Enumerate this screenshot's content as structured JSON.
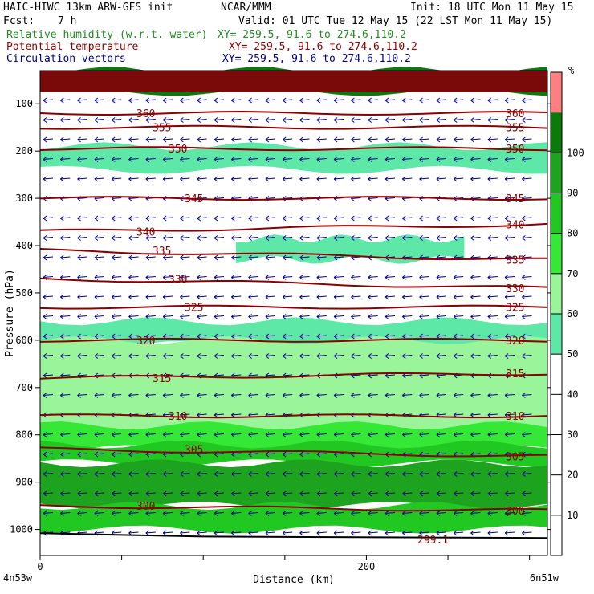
{
  "header": {
    "model": "HAIC-HIWC 13km ARW-GFS init",
    "org": "NCAR/MMM",
    "init": "Init: 18 UTC Mon 11 May 15",
    "fcst_label": "Fcst:",
    "fcst_value": "7 h",
    "valid": "Valid: 01 UTC Tue 12 May 15 (22 LST Mon 11 May 15)",
    "rh_title": "Relative humidity (w.r.t. water)",
    "rh_xy": "XY= 259.5, 91.6 to 274.6,110.2",
    "theta_title": "Potential temperature",
    "theta_xy": "XY= 259.5, 91.6 to 274.6,110.2",
    "vec_title": "Circulation vectors",
    "vec_xy": "XY= 259.5, 91.6 to 274.6,110.2"
  },
  "colors": {
    "rh": "#228b22",
    "theta": "#8b0000",
    "vectors": "#00008b",
    "bands": [
      "#ffffff",
      "#ffffff",
      "#ffffff",
      "#ffffff",
      "#ffffff",
      "#5ee8a8",
      "#9af59a",
      "#36e836",
      "#22c822",
      "#1ea31e",
      "#0a7a0a",
      "#ff8080"
    ]
  },
  "chart_data": {
    "type": "heatmap",
    "xlabel": "Distance (km)",
    "ylabel": "Pressure (hPa)",
    "xlim": [
      0,
      311
    ],
    "ylim": [
      1055,
      30
    ],
    "x_ticks": [
      0,
      200
    ],
    "y_ticks": [
      100,
      200,
      300,
      400,
      500,
      600,
      700,
      800,
      900,
      1000
    ],
    "x_endpoint_labels": [
      "4n53w",
      "6n51w"
    ],
    "colorbar": {
      "unit": "%",
      "levels": [
        10,
        20,
        30,
        40,
        50,
        60,
        70,
        80,
        90,
        100
      ]
    },
    "rh_regions": [
      {
        "level": 50,
        "x": [
          0,
          311
        ],
        "p_top": 560,
        "p_bottom": 610
      },
      {
        "level": 50,
        "x": [
          120,
          260
        ],
        "p_top": 385,
        "p_bottom": 430
      },
      {
        "level": 50,
        "x": [
          0,
          311
        ],
        "p_top": 190,
        "p_bottom": 240
      },
      {
        "level": 60,
        "x": [
          0,
          311
        ],
        "p_top": 600,
        "p_bottom": 790
      },
      {
        "level": 70,
        "x": [
          0,
          311
        ],
        "p_top": 780,
        "p_bottom": 830
      },
      {
        "level": 80,
        "x": [
          0,
          311
        ],
        "p_top": 820,
        "p_bottom": 860
      },
      {
        "level": 90,
        "x": [
          0,
          311
        ],
        "p_top": 860,
        "p_bottom": 950
      },
      {
        "level": 80,
        "x": [
          0,
          311
        ],
        "p_top": 950,
        "p_bottom": 1000
      },
      {
        "level": 100,
        "x": [
          0,
          311
        ],
        "p_top": 30,
        "p_bottom": 75
      }
    ],
    "theta_contours": [
      {
        "label": "360",
        "p_left": 120,
        "p_right": 120
      },
      {
        "label": "355",
        "p_left": 150,
        "p_right": 150
      },
      {
        "label": "350",
        "p_left": 195,
        "p_right": 195
      },
      {
        "label": "345",
        "p_left": 300,
        "p_right": 300
      },
      {
        "label": "340",
        "p_left": 370,
        "p_right": 355
      },
      {
        "label": "335",
        "p_left": 410,
        "p_right": 430
      },
      {
        "label": "330",
        "p_left": 470,
        "p_right": 490
      },
      {
        "label": "325",
        "p_left": 530,
        "p_right": 530
      },
      {
        "label": "320",
        "p_left": 600,
        "p_right": 600
      },
      {
        "label": "315",
        "p_left": 680,
        "p_right": 670
      },
      {
        "label": "310",
        "p_left": 760,
        "p_right": 760
      },
      {
        "label": "305",
        "p_left": 830,
        "p_right": 845
      },
      {
        "label": "300",
        "p_left": 950,
        "p_right": 960
      }
    ],
    "surface_label": "299.1",
    "vector_direction": "westward"
  }
}
